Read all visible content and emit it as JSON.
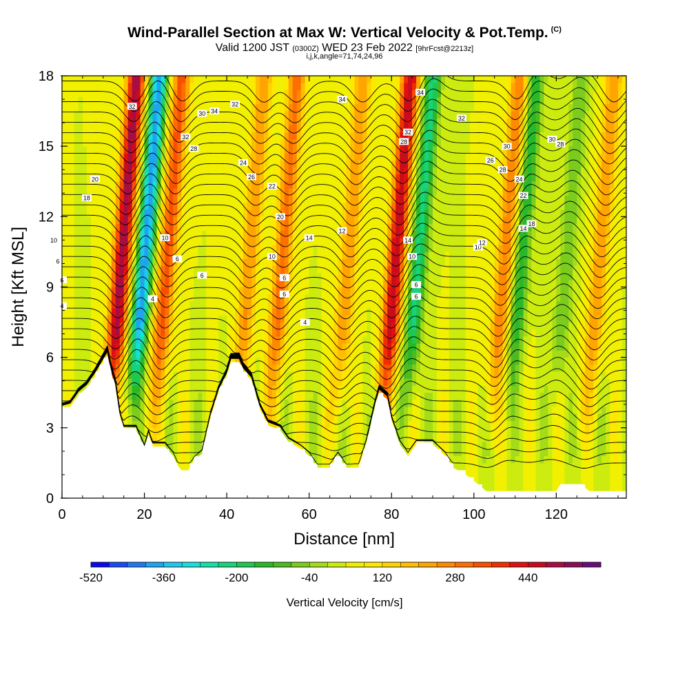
{
  "header": {
    "title": "Wind-Parallel Section at Max W: Vertical Velocity & Pot.Temp.",
    "copyright": "(C)",
    "valid_a": "Valid 1200 JST",
    "valid_zulu": "(0300Z)",
    "valid_b": "WED 23 Feb 2022",
    "forecast": "[9hrFcst@2213z]",
    "indices": "i,j,k,angle=71,74,24,96"
  },
  "chart_data": {
    "type": "heatmap",
    "xlabel": "Distance [nm]",
    "ylabel": "Height [Kft MSL]",
    "xlim": [
      0,
      137
    ],
    "ylim": [
      0,
      18
    ],
    "xticks": [
      0,
      20,
      40,
      60,
      80,
      100,
      120
    ],
    "xtick_labels": [
      "0",
      "20",
      "40",
      "60",
      "80",
      "100",
      "120"
    ],
    "yticks": [
      0,
      3,
      6,
      9,
      12,
      15,
      18
    ],
    "ytick_labels": [
      "0",
      "3",
      "6",
      "9",
      "12",
      "15",
      "18"
    ],
    "colorbar": {
      "title": "Vertical Velocity [cm/s]",
      "min": -520,
      "max": 600,
      "step": 40,
      "tick_values": [
        -520,
        -360,
        -200,
        -40,
        120,
        280,
        440
      ],
      "tick_labels": [
        "-520",
        "-360",
        "-200",
        "-40",
        "120",
        "280",
        "440"
      ],
      "colors": [
        "#0a0aee",
        "#1a4cf0",
        "#1e78f0",
        "#1ea4f0",
        "#1ec8ee",
        "#16e0dc",
        "#14e0a8",
        "#16d47c",
        "#1ec850",
        "#28b828",
        "#4cba20",
        "#7ccc1e",
        "#a4dc18",
        "#ccec10",
        "#f0f000",
        "#ffe800",
        "#ffd400",
        "#ffbe00",
        "#ffa400",
        "#ff8a00",
        "#ff6e00",
        "#f85000",
        "#ee3000",
        "#e01010",
        "#c80c1c",
        "#a80c40",
        "#8c0c5c",
        "#6c0c78"
      ]
    },
    "updrafts": [
      {
        "x": 15,
        "peak": 480
      },
      {
        "x": 26,
        "peak": 300
      },
      {
        "x": 46,
        "peak": 200
      },
      {
        "x": 54,
        "peak": 260
      },
      {
        "x": 70,
        "peak": 200
      },
      {
        "x": 81.5,
        "peak": 440
      },
      {
        "x": 108,
        "peak": 240
      },
      {
        "x": 131,
        "peak": 200
      }
    ],
    "downdrafts": [
      {
        "x": 20.5,
        "peak": -440
      },
      {
        "x": 87,
        "peak": -260
      },
      {
        "x": 112,
        "peak": -200
      },
      {
        "x": 123,
        "peak": -120
      }
    ],
    "terrain": [
      [
        0,
        3.8
      ],
      [
        2,
        3.9
      ],
      [
        4,
        4.4
      ],
      [
        6,
        4.7
      ],
      [
        8,
        5.2
      ],
      [
        10,
        5.8
      ],
      [
        11,
        6.1
      ],
      [
        12,
        5.3
      ],
      [
        13,
        4.7
      ],
      [
        14,
        3.5
      ],
      [
        15,
        2.9
      ],
      [
        18,
        2.9
      ],
      [
        19,
        2.5
      ],
      [
        20,
        2.1
      ],
      [
        21,
        2.7
      ],
      [
        22,
        2.2
      ],
      [
        25,
        2.2
      ],
      [
        27,
        1.8
      ],
      [
        28,
        1.4
      ],
      [
        30,
        1.0
      ],
      [
        32,
        1.6
      ],
      [
        34,
        1.9
      ],
      [
        36,
        3.4
      ],
      [
        38,
        4.5
      ],
      [
        40,
        5.2
      ],
      [
        41,
        5.8
      ],
      [
        43,
        5.8
      ],
      [
        44,
        5.4
      ],
      [
        46,
        5.0
      ],
      [
        48,
        3.8
      ],
      [
        50,
        3.1
      ],
      [
        53,
        2.9
      ],
      [
        55,
        2.4
      ],
      [
        58,
        2.1
      ],
      [
        60,
        1.8
      ],
      [
        62,
        1.3
      ],
      [
        65,
        1.3
      ],
      [
        67,
        1.8
      ],
      [
        69,
        1.3
      ],
      [
        72,
        1.3
      ],
      [
        74,
        2.4
      ],
      [
        76,
        3.9
      ],
      [
        77,
        4.5
      ],
      [
        79,
        4.2
      ],
      [
        80,
        3.3
      ],
      [
        82,
        2.3
      ],
      [
        84,
        1.8
      ],
      [
        86,
        2.3
      ],
      [
        90,
        2.3
      ],
      [
        93,
        1.8
      ],
      [
        95,
        1.3
      ],
      [
        98,
        1.0
      ],
      [
        101,
        0.6
      ],
      [
        103,
        0.3
      ],
      [
        120,
        0.3
      ],
      [
        121,
        0.6
      ],
      [
        126,
        0.6
      ],
      [
        128,
        0.3
      ],
      [
        137,
        0.3
      ]
    ],
    "theta_label_values": [
      "4",
      "6",
      "8",
      "10",
      "12",
      "14",
      "16",
      "18",
      "20",
      "22",
      "24",
      "26",
      "28",
      "30",
      "32",
      "34"
    ]
  }
}
